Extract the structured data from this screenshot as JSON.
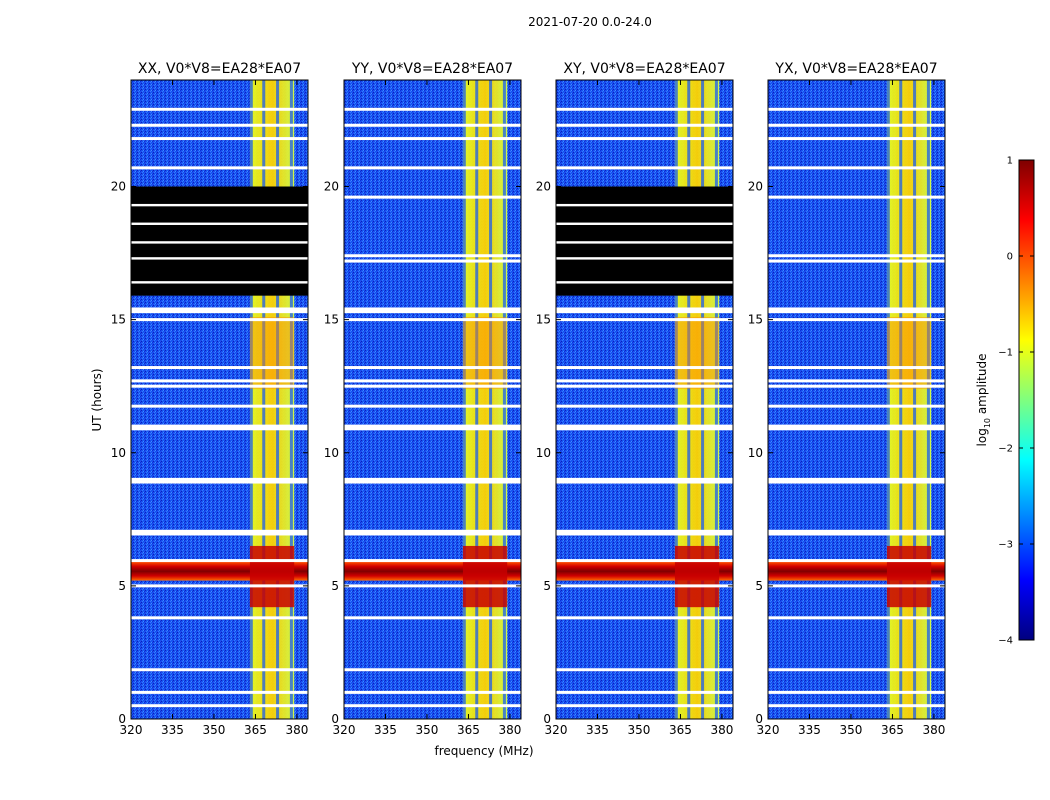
{
  "figure": {
    "suptitle": "2021-07-20 0.0-24.0",
    "ylabel": "UT (hours)",
    "xlabel": "frequency (MHz)"
  },
  "chart_data": {
    "type": "heatmap",
    "x_ticks": [
      "320",
      "335",
      "350",
      "365",
      "380"
    ],
    "y_ticks": [
      "0",
      "5",
      "10",
      "15",
      "20"
    ],
    "xlim": [
      320,
      384
    ],
    "ylim": [
      0,
      24
    ],
    "panels": [
      {
        "title": "XX, V0*V8=EA28*EA07",
        "flagged_blocks": [
          [
            15.9,
            20.0
          ]
        ]
      },
      {
        "title": "YY, V0*V8=EA28*EA07",
        "flagged_blocks": []
      },
      {
        "title": "XY, V0*V8=EA28*EA07",
        "flagged_blocks": [
          [
            15.9,
            20.0
          ]
        ]
      },
      {
        "title": "YX, V0*V8=EA28*EA07",
        "flagged_blocks": []
      }
    ],
    "white_gaps_hours": [
      0.5,
      1.0,
      1.85,
      3.8,
      5.0,
      5.95,
      6.95,
      7.05,
      8.9,
      9.0,
      10.9,
      11.0,
      11.75,
      12.5,
      12.7,
      13.2,
      15.0,
      15.3,
      15.4,
      17.2,
      17.4,
      19.6,
      20.7,
      21.8,
      22.3,
      22.9
    ],
    "rfi_band_MHz": [
      363,
      379
    ],
    "rfi_channel_columns_MHz": [
      363.5,
      368,
      373,
      378
    ],
    "strong_event_hours": [
      5.2,
      5.9
    ],
    "colorbar": {
      "label": "log10 amplitude",
      "label_main": "log",
      "label_sub": "10",
      "label_rest": " amplitude",
      "ticks": [
        "1",
        "0",
        "−1",
        "−2",
        "−3",
        "−4"
      ],
      "range": [
        -4,
        1
      ],
      "colormap": [
        "#00007f",
        "#0000ff",
        "#007fff",
        "#00ffff",
        "#7fff7f",
        "#ffff00",
        "#ff7f00",
        "#ff0000",
        "#7f0000"
      ]
    }
  }
}
